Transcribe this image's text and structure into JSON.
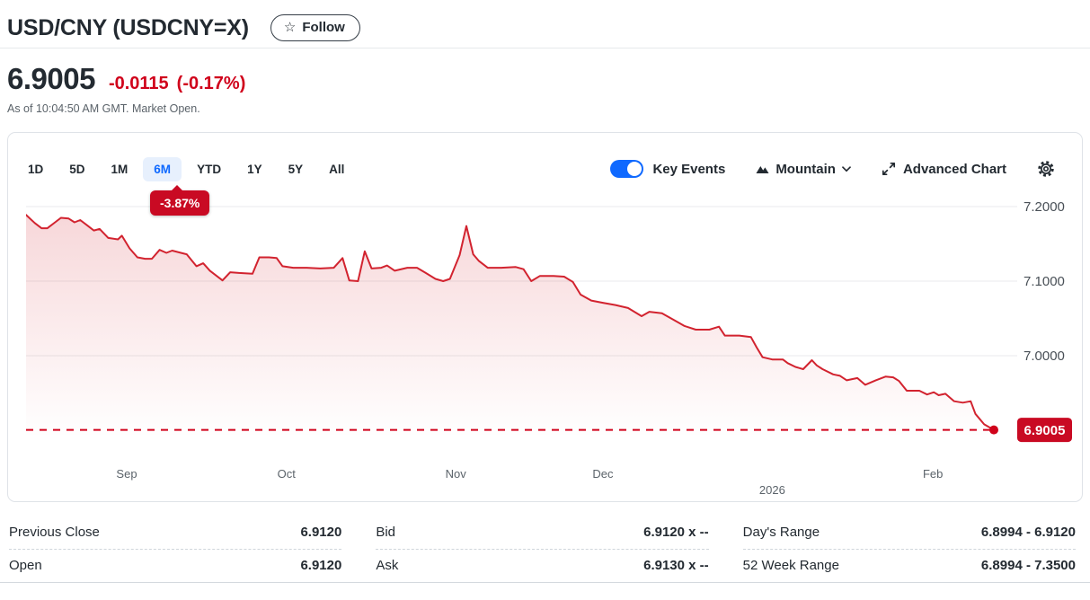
{
  "header": {
    "title": "USD/CNY (USDCNY=X)",
    "follow_label": "Follow",
    "price": "6.9005",
    "change": "-0.0115",
    "change_pct": "(-0.17%)",
    "as_of": "As of 10:04:50 AM GMT. Market Open."
  },
  "toolbar": {
    "ranges": [
      "1D",
      "5D",
      "1M",
      "6M",
      "YTD",
      "1Y",
      "5Y",
      "All"
    ],
    "selected_range": "6M",
    "selected_change_badge": "-3.87%",
    "key_events_label": "Key Events",
    "key_events_on": true,
    "chart_type_label": "Mountain",
    "advanced_chart_label": "Advanced Chart"
  },
  "chart_data": {
    "type": "area",
    "title": "USD/CNY 6-month mountain chart",
    "legend": "none",
    "grid": true,
    "ylim": [
      6.8687,
      7.2181
    ],
    "y_ticks": [
      {
        "value": 7.2,
        "label": "7.2000"
      },
      {
        "value": 7.1,
        "label": "7.1000"
      },
      {
        "value": 7.0,
        "label": "7.0000"
      }
    ],
    "x_ticks": [
      {
        "f": 0.104,
        "label": "Sep",
        "year": false
      },
      {
        "f": 0.269,
        "label": "Oct",
        "year": false
      },
      {
        "f": 0.444,
        "label": "Nov",
        "year": false
      },
      {
        "f": 0.596,
        "label": "Dec",
        "year": false
      },
      {
        "f": 0.771,
        "label": "2026",
        "year": true
      },
      {
        "f": 0.937,
        "label": "Feb",
        "year": false
      }
    ],
    "current_price": {
      "value": 6.9005,
      "label": "6.9005"
    },
    "series": [
      {
        "name": "USDCNY=X",
        "points": [
          [
            0,
            7.189
          ],
          [
            0.009,
            7.178
          ],
          [
            0.016,
            7.171
          ],
          [
            0.022,
            7.171
          ],
          [
            0.03,
            7.179
          ],
          [
            0.036,
            7.185
          ],
          [
            0.044,
            7.184
          ],
          [
            0.05,
            7.179
          ],
          [
            0.056,
            7.182
          ],
          [
            0.064,
            7.174
          ],
          [
            0.07,
            7.168
          ],
          [
            0.076,
            7.17
          ],
          [
            0.085,
            7.158
          ],
          [
            0.095,
            7.156
          ],
          [
            0.099,
            7.161
          ],
          [
            0.107,
            7.144
          ],
          [
            0.115,
            7.132
          ],
          [
            0.123,
            7.13
          ],
          [
            0.13,
            7.13
          ],
          [
            0.138,
            7.142
          ],
          [
            0.145,
            7.138
          ],
          [
            0.151,
            7.141
          ],
          [
            0.16,
            7.138
          ],
          [
            0.166,
            7.136
          ],
          [
            0.176,
            7.12
          ],
          [
            0.183,
            7.124
          ],
          [
            0.19,
            7.114
          ],
          [
            0.203,
            7.101
          ],
          [
            0.211,
            7.112
          ],
          [
            0.22,
            7.111
          ],
          [
            0.234,
            7.11
          ],
          [
            0.241,
            7.132
          ],
          [
            0.251,
            7.132
          ],
          [
            0.259,
            7.131
          ],
          [
            0.265,
            7.12
          ],
          [
            0.276,
            7.118
          ],
          [
            0.29,
            7.118
          ],
          [
            0.304,
            7.117
          ],
          [
            0.318,
            7.118
          ],
          [
            0.327,
            7.131
          ],
          [
            0.334,
            7.101
          ],
          [
            0.343,
            7.1
          ],
          [
            0.35,
            7.14
          ],
          [
            0.357,
            7.117
          ],
          [
            0.367,
            7.118
          ],
          [
            0.373,
            7.121
          ],
          [
            0.381,
            7.114
          ],
          [
            0.394,
            7.118
          ],
          [
            0.404,
            7.118
          ],
          [
            0.413,
            7.111
          ],
          [
            0.423,
            7.103
          ],
          [
            0.431,
            7.1
          ],
          [
            0.438,
            7.103
          ],
          [
            0.448,
            7.135
          ],
          [
            0.455,
            7.174
          ],
          [
            0.462,
            7.136
          ],
          [
            0.468,
            7.127
          ],
          [
            0.477,
            7.118
          ],
          [
            0.491,
            7.118
          ],
          [
            0.506,
            7.119
          ],
          [
            0.514,
            7.116
          ],
          [
            0.522,
            7.1
          ],
          [
            0.531,
            7.107
          ],
          [
            0.545,
            7.107
          ],
          [
            0.556,
            7.106
          ],
          [
            0.565,
            7.099
          ],
          [
            0.573,
            7.082
          ],
          [
            0.584,
            7.074
          ],
          [
            0.596,
            7.071
          ],
          [
            0.609,
            7.068
          ],
          [
            0.622,
            7.064
          ],
          [
            0.636,
            7.053
          ],
          [
            0.644,
            7.059
          ],
          [
            0.657,
            7.057
          ],
          [
            0.668,
            7.049
          ],
          [
            0.68,
            7.04
          ],
          [
            0.692,
            7.035
          ],
          [
            0.706,
            7.035
          ],
          [
            0.716,
            7.039
          ],
          [
            0.722,
            7.027
          ],
          [
            0.737,
            7.027
          ],
          [
            0.749,
            7.025
          ],
          [
            0.755,
            7.011
          ],
          [
            0.761,
            6.998
          ],
          [
            0.771,
            6.995
          ],
          [
            0.782,
            6.995
          ],
          [
            0.787,
            6.99
          ],
          [
            0.795,
            6.985
          ],
          [
            0.803,
            6.982
          ],
          [
            0.812,
            6.994
          ],
          [
            0.817,
            6.987
          ],
          [
            0.823,
            6.982
          ],
          [
            0.834,
            6.975
          ],
          [
            0.841,
            6.973
          ],
          [
            0.848,
            6.967
          ],
          [
            0.859,
            6.97
          ],
          [
            0.867,
            6.961
          ],
          [
            0.878,
            6.967
          ],
          [
            0.888,
            6.972
          ],
          [
            0.896,
            6.971
          ],
          [
            0.902,
            6.966
          ],
          [
            0.91,
            6.953
          ],
          [
            0.923,
            6.953
          ],
          [
            0.931,
            6.948
          ],
          [
            0.938,
            6.951
          ],
          [
            0.943,
            6.947
          ],
          [
            0.95,
            6.949
          ],
          [
            0.959,
            6.939
          ],
          [
            0.968,
            6.937
          ],
          [
            0.976,
            6.939
          ],
          [
            0.981,
            6.922
          ],
          [
            0.99,
            6.908
          ],
          [
            1,
            6.9005
          ]
        ]
      }
    ],
    "colors": {
      "line": "#d2232f",
      "fill_top": "rgba(211,35,47,0.18)",
      "fill_bottom": "rgba(211,35,47,0)",
      "grid": "#e8eaec",
      "tick_text": "#484f56",
      "down_red": "#d0021b",
      "badge_bg": "#c90a23",
      "accent_blue": "#0f69ff"
    }
  },
  "stats": {
    "rows": [
      [
        {
          "label": "Previous Close",
          "value": "6.9120"
        },
        {
          "label": "Bid",
          "value": "6.9120 x --"
        },
        {
          "label": "Day's Range",
          "value": "6.8994 - 6.9120"
        }
      ],
      [
        {
          "label": "Open",
          "value": "6.9120"
        },
        {
          "label": "Ask",
          "value": "6.9130 x --"
        },
        {
          "label": "52 Week Range",
          "value": "6.8994 - 7.3500"
        }
      ]
    ]
  }
}
